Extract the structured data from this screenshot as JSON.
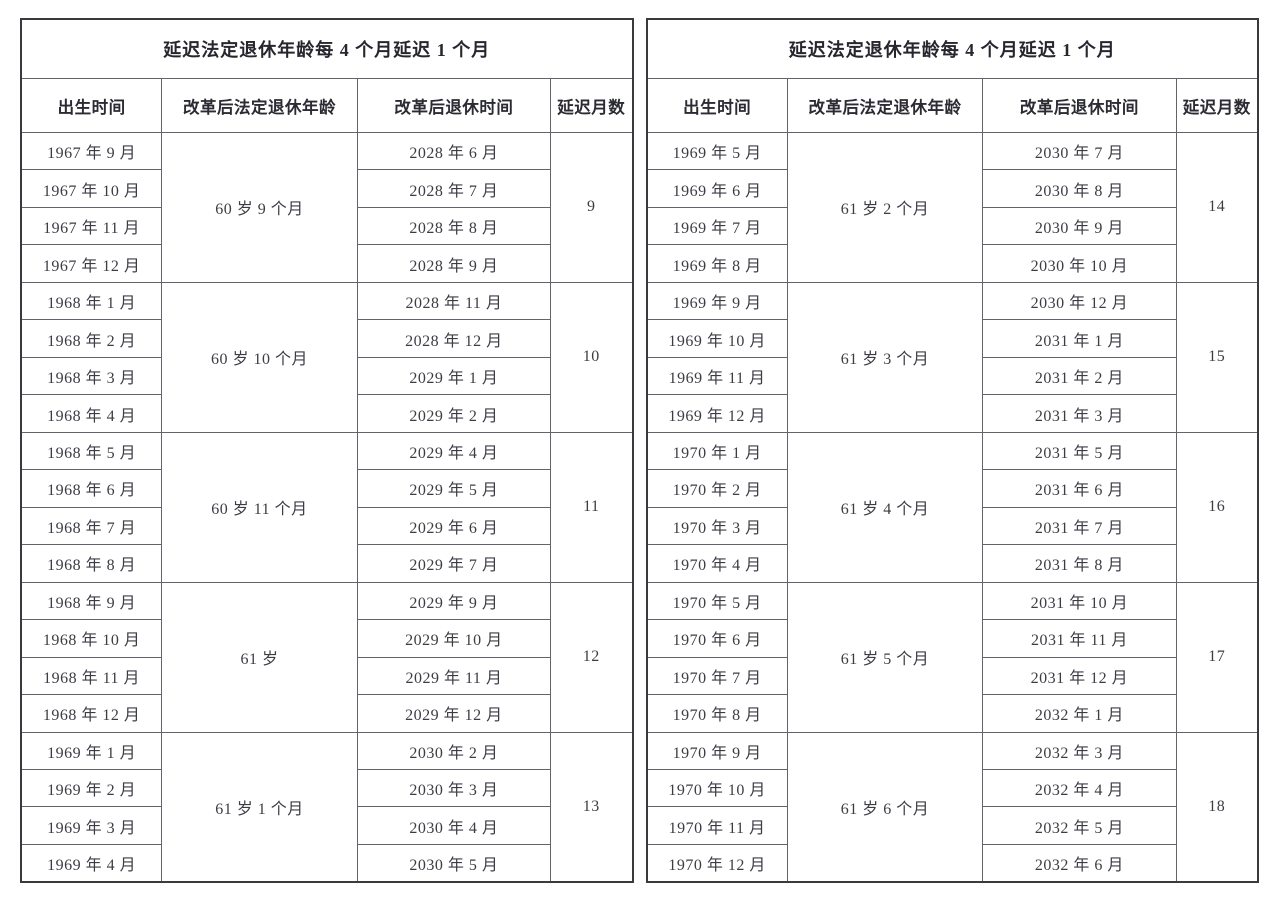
{
  "page": {
    "background_color": "#ffffff",
    "text_color": "#3c3c44",
    "heading_color": "#26262e",
    "outer_border_color": "#3a3a3e",
    "inner_border_color": "#63636b"
  },
  "tables": [
    {
      "title": "延迟法定退休年龄每 4 个月延迟 1 个月",
      "columns": [
        "出生时间",
        "改革后法定退休年龄",
        "改革后退休时间",
        "延迟月数"
      ],
      "groups": [
        {
          "birth_months": [
            "1967 年 9 月",
            "1967 年 10 月",
            "1967 年 11 月",
            "1967 年 12 月"
          ],
          "retirement_age": "60 岁 9 个月",
          "retirement_months": [
            "2028 年 6 月",
            "2028 年 7 月",
            "2028 年 8 月",
            "2028 年 9 月"
          ],
          "delay_months": "9"
        },
        {
          "birth_months": [
            "1968 年 1 月",
            "1968 年 2 月",
            "1968 年 3 月",
            "1968 年 4 月"
          ],
          "retirement_age": "60 岁 10 个月",
          "retirement_months": [
            "2028 年 11 月",
            "2028 年 12 月",
            "2029 年 1 月",
            "2029 年 2 月"
          ],
          "delay_months": "10"
        },
        {
          "birth_months": [
            "1968 年 5 月",
            "1968 年 6 月",
            "1968 年 7 月",
            "1968 年 8 月"
          ],
          "retirement_age": "60 岁 11 个月",
          "retirement_months": [
            "2029 年 4 月",
            "2029 年 5 月",
            "2029 年 6 月",
            "2029 年 7 月"
          ],
          "delay_months": "11"
        },
        {
          "birth_months": [
            "1968 年 9 月",
            "1968 年 10 月",
            "1968 年 11 月",
            "1968 年 12 月"
          ],
          "retirement_age": "61 岁",
          "retirement_months": [
            "2029 年 9 月",
            "2029 年 10 月",
            "2029 年 11 月",
            "2029 年 12 月"
          ],
          "delay_months": "12"
        },
        {
          "birth_months": [
            "1969 年 1 月",
            "1969 年 2 月",
            "1969 年 3 月",
            "1969 年 4 月"
          ],
          "retirement_age": "61 岁 1 个月",
          "retirement_months": [
            "2030 年 2 月",
            "2030 年 3 月",
            "2030 年 4 月",
            "2030 年 5 月"
          ],
          "delay_months": "13"
        }
      ]
    },
    {
      "title": "延迟法定退休年龄每 4 个月延迟 1 个月",
      "columns": [
        "出生时间",
        "改革后法定退休年龄",
        "改革后退休时间",
        "延迟月数"
      ],
      "groups": [
        {
          "birth_months": [
            "1969 年 5 月",
            "1969 年 6 月",
            "1969 年 7 月",
            "1969 年 8 月"
          ],
          "retirement_age": "61 岁 2 个月",
          "retirement_months": [
            "2030 年 7 月",
            "2030 年 8 月",
            "2030 年 9 月",
            "2030 年 10 月"
          ],
          "delay_months": "14"
        },
        {
          "birth_months": [
            "1969 年 9 月",
            "1969 年 10 月",
            "1969 年 11 月",
            "1969 年 12 月"
          ],
          "retirement_age": "61 岁 3 个月",
          "retirement_months": [
            "2030 年 12 月",
            "2031 年 1 月",
            "2031 年 2 月",
            "2031 年 3 月"
          ],
          "delay_months": "15"
        },
        {
          "birth_months": [
            "1970 年 1 月",
            "1970 年 2 月",
            "1970 年 3 月",
            "1970 年 4 月"
          ],
          "retirement_age": "61 岁 4 个月",
          "retirement_months": [
            "2031 年 5 月",
            "2031 年 6 月",
            "2031 年 7 月",
            "2031 年 8 月"
          ],
          "delay_months": "16"
        },
        {
          "birth_months": [
            "1970 年 5 月",
            "1970 年 6 月",
            "1970 年 7 月",
            "1970 年 8 月"
          ],
          "retirement_age": "61 岁 5 个月",
          "retirement_months": [
            "2031 年 10 月",
            "2031 年 11 月",
            "2031 年 12 月",
            "2032 年 1 月"
          ],
          "delay_months": "17"
        },
        {
          "birth_months": [
            "1970 年 9 月",
            "1970 年 10 月",
            "1970 年 11 月",
            "1970 年 12 月"
          ],
          "retirement_age": "61 岁 6 个月",
          "retirement_months": [
            "2032 年 3 月",
            "2032 年 4 月",
            "2032 年 5 月",
            "2032 年 6 月"
          ],
          "delay_months": "18"
        }
      ]
    }
  ]
}
